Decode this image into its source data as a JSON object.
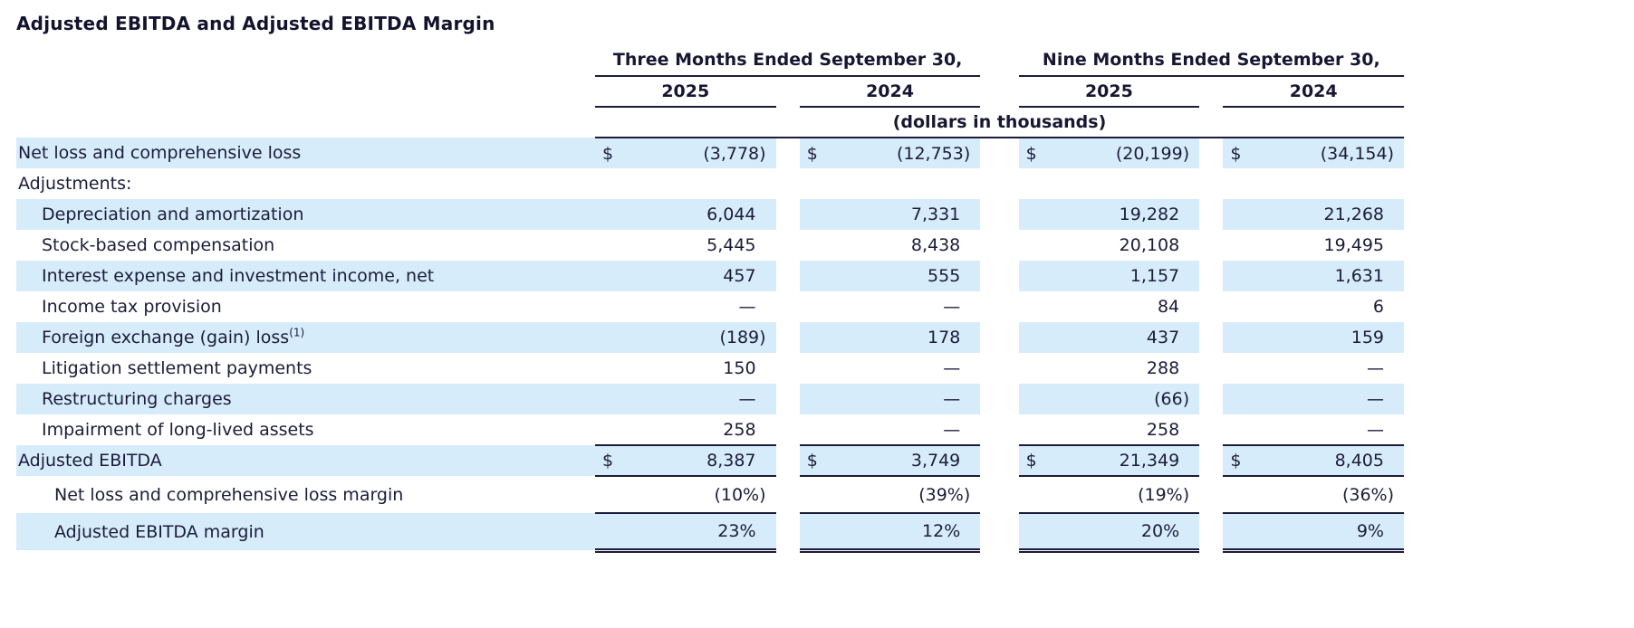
{
  "title": "Adjusted EBITDA and Adjusted EBITDA Margin",
  "colors": {
    "shaded_row": "#d6ecfb",
    "text": "#1c1c3a",
    "rule": "#1c1c3a"
  },
  "table": {
    "currency_symbol": "$",
    "units_note": "(dollars in thousands)",
    "col_groups": [
      {
        "label": "Three Months Ended September 30,",
        "years": [
          "2025",
          "2024"
        ]
      },
      {
        "label": "Nine Months Ended September 30,",
        "years": [
          "2025",
          "2024"
        ]
      }
    ],
    "rows": [
      {
        "label": "Net loss and comprehensive loss",
        "indent": 0,
        "shaded": true,
        "dollar": true,
        "values": [
          "(3,778)",
          "(12,753)",
          "(20,199)",
          "(34,154)"
        ]
      },
      {
        "label": "Adjustments:",
        "indent": 0,
        "shaded": false,
        "dollar": false,
        "values": [
          "",
          "",
          "",
          ""
        ]
      },
      {
        "label": "Depreciation and amortization",
        "indent": 1,
        "shaded": true,
        "dollar": false,
        "values": [
          "6,044",
          "7,331",
          "19,282",
          "21,268"
        ]
      },
      {
        "label": "Stock-based compensation",
        "indent": 1,
        "shaded": false,
        "dollar": false,
        "values": [
          "5,445",
          "8,438",
          "20,108",
          "19,495"
        ]
      },
      {
        "label": "Interest expense and investment income, net",
        "indent": 1,
        "shaded": true,
        "dollar": false,
        "values": [
          "457",
          "555",
          "1,157",
          "1,631"
        ]
      },
      {
        "label": "Income tax provision",
        "indent": 1,
        "shaded": false,
        "dollar": false,
        "values": [
          "—",
          "—",
          "84",
          "6"
        ]
      },
      {
        "label": "Foreign exchange (gain) loss",
        "footnote": "(1)",
        "indent": 1,
        "shaded": true,
        "dollar": false,
        "values": [
          "(189)",
          "178",
          "437",
          "159"
        ]
      },
      {
        "label": "Litigation settlement payments",
        "indent": 1,
        "shaded": false,
        "dollar": false,
        "values": [
          "150",
          "—",
          "288",
          "—"
        ]
      },
      {
        "label": "Restructuring charges",
        "indent": 1,
        "shaded": true,
        "dollar": false,
        "values": [
          "—",
          "—",
          "(66)",
          "—"
        ]
      },
      {
        "label": "Impairment of long-lived assets",
        "indent": 1,
        "shaded": false,
        "dollar": false,
        "values": [
          "258",
          "—",
          "258",
          "—"
        ],
        "rule": "rule-single"
      },
      {
        "label": "Adjusted EBITDA",
        "indent": 0,
        "shaded": true,
        "dollar": true,
        "values": [
          "8,387",
          "3,749",
          "21,349",
          "8,405"
        ],
        "rule": "rule-single"
      },
      {
        "label": "Net loss and comprehensive loss margin",
        "indent": 2,
        "shaded": false,
        "dollar": false,
        "values": [
          "(10%)",
          "(39%)",
          "(19%)",
          "(36%)"
        ],
        "rule": "rule-single",
        "tall": true
      },
      {
        "label": "Adjusted EBITDA margin",
        "indent": 2,
        "shaded": true,
        "dollar": false,
        "values": [
          "23%",
          "12%",
          "20%",
          "9%"
        ],
        "rule": "rule-double",
        "tall": true
      }
    ]
  }
}
